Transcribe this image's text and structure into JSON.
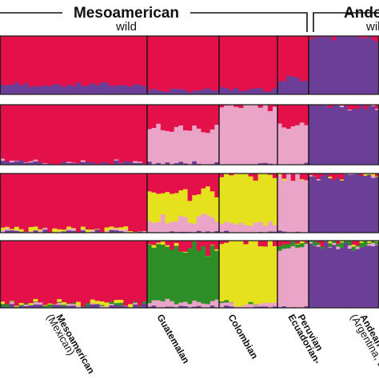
{
  "chart_data": {
    "type": "bar",
    "subtype": "stacked-admixture",
    "header": {
      "groups": [
        {
          "title": "Mesoamerican",
          "subtitle": "wild"
        },
        {
          "title": "Andean",
          "subtitle": "wild"
        }
      ]
    },
    "colors": {
      "red": "#e3104a",
      "purple": "#6b3e98",
      "pink": "#eaa4c8",
      "yellow": "#e6e11e",
      "green": "#2e8e27",
      "lightgreen": "#7fc145"
    },
    "populations": [
      {
        "name": "Mesoamerican",
        "sub": "(Mexican)",
        "n": 31
      },
      {
        "name": "Guatemalan",
        "sub": "",
        "n": 16
      },
      {
        "name": "Colombian",
        "sub": "",
        "n": 12
      },
      {
        "name": "Ecuadorian-\nPeruvian",
        "sub": "",
        "n": 7
      },
      {
        "name": "Andean",
        "sub": "(Argentina, Bolivia)",
        "n": 18
      }
    ],
    "panels": [
      {
        "K": 2,
        "components": [
          "red",
          "purple"
        ],
        "pop_mean": [
          [
            0.84,
            0.16
          ],
          [
            0.93,
            0.07
          ],
          [
            0.92,
            0.08
          ],
          [
            0.7,
            0.3
          ],
          [
            0.03,
            0.97
          ]
        ]
      },
      {
        "K": 3,
        "components": [
          "red",
          "pink",
          "purple"
        ],
        "pop_mean": [
          [
            0.96,
            0.0,
            0.04
          ],
          [
            0.4,
            0.58,
            0.02
          ],
          [
            0.02,
            0.98,
            0.0
          ],
          [
            0.35,
            0.65,
            0.0
          ],
          [
            0.02,
            0.0,
            0.98
          ]
        ]
      },
      {
        "K": 4,
        "components": [
          "red",
          "yellow",
          "pink",
          "purple"
        ],
        "pop_mean": [
          [
            0.94,
            0.03,
            0.01,
            0.02
          ],
          [
            0.32,
            0.45,
            0.23,
            0.0
          ],
          [
            0.02,
            0.83,
            0.15,
            0.0
          ],
          [
            0.05,
            0.0,
            0.95,
            0.0
          ],
          [
            0.01,
            0.0,
            0.0,
            0.99
          ]
        ]
      },
      {
        "K": 5,
        "components": [
          "red",
          "yellow",
          "green",
          "pink",
          "purple"
        ],
        "pop_mean": [
          [
            0.95,
            0.02,
            0.01,
            0.0,
            0.02
          ],
          [
            0.12,
            0.02,
            0.78,
            0.08,
            0.0
          ],
          [
            0.0,
            0.95,
            0.0,
            0.05,
            0.0
          ],
          [
            0.0,
            0.0,
            0.05,
            0.95,
            0.0
          ],
          [
            0.01,
            0.0,
            0.05,
            0.02,
            0.92
          ]
        ]
      }
    ]
  }
}
